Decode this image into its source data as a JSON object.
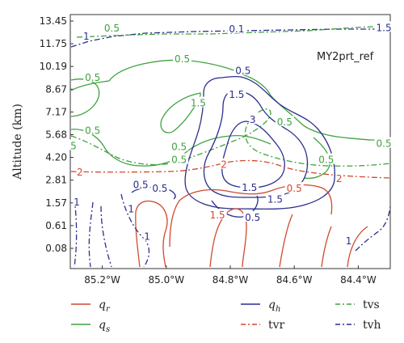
{
  "chart_data": {
    "type": "contour",
    "annotation": "MY2prt_ref",
    "ylabel": "Altitude (km)",
    "xlabel": "",
    "y_ticks": [
      "0.08",
      "0.61",
      "1.57",
      "2.81",
      "4.20",
      "5.68",
      "7.17",
      "8.67",
      "10.19",
      "11.75",
      "13.45"
    ],
    "x_ticks": [
      "85.2°W",
      "85.0°W",
      "84.8°W",
      "84.6°W",
      "84.4°W"
    ],
    "x_tick_values": [
      -85.2,
      -85.0,
      -84.8,
      -84.6,
      -84.4
    ],
    "xlim": [
      -85.3,
      -84.3
    ],
    "legend_placement": "bottom",
    "legend": [
      {
        "key": "qr",
        "base": "q",
        "sub": "r",
        "color": "#d0492d",
        "dash": "solid"
      },
      {
        "key": "qh",
        "base": "q",
        "sub": "h",
        "color": "#2c2f8c",
        "dash": "solid"
      },
      {
        "key": "tvs",
        "base": "tvs",
        "sub": "",
        "color": "#3fa23f",
        "dash": "dashdot"
      },
      {
        "key": "qs",
        "base": "q",
        "sub": "s",
        "color": "#3fa23f",
        "dash": "solid"
      },
      {
        "key": "tvr",
        "base": "tvr",
        "sub": "",
        "color": "#d0492d",
        "dash": "dashdot"
      },
      {
        "key": "tvh",
        "base": "tvh",
        "sub": "",
        "color": "#2c2f8c",
        "dash": "dashdot"
      }
    ],
    "contour_labels": [
      {
        "series": "tvs",
        "text": "0.5",
        "x": -85.17,
        "y": 12.9
      },
      {
        "series": "tvh",
        "text": "1",
        "x": -85.25,
        "y": 12.3
      },
      {
        "series": "tvh",
        "text": "0.1",
        "x": -84.78,
        "y": 12.85
      },
      {
        "series": "tvh",
        "text": "1.5",
        "x": -84.32,
        "y": 12.95
      },
      {
        "series": "qs",
        "text": "0.5",
        "x": -84.95,
        "y": 10.7
      },
      {
        "series": "qs",
        "text": "0.5",
        "x": -85.23,
        "y": 9.45
      },
      {
        "series": "qs",
        "text": "1.5",
        "x": -84.9,
        "y": 7.75
      },
      {
        "series": "qs",
        "text": "0.5",
        "x": -85.23,
        "y": 5.95
      },
      {
        "series": "qs",
        "text": "5",
        "x": -85.29,
        "y": 4.95
      },
      {
        "series": "qs",
        "text": "0.5",
        "x": -84.96,
        "y": 4.9
      },
      {
        "series": "qs",
        "text": "0.5",
        "x": -84.96,
        "y": 4.05
      },
      {
        "series": "qs",
        "text": "0.5",
        "x": -84.5,
        "y": 4.05
      },
      {
        "series": "qs",
        "text": "0.5",
        "x": -84.32,
        "y": 5.1
      },
      {
        "series": "qs",
        "text": "0.5",
        "x": -84.63,
        "y": 6.5
      },
      {
        "series": "qh",
        "text": "0.5",
        "x": -84.76,
        "y": 9.9
      },
      {
        "series": "qh",
        "text": "1.5",
        "x": -84.78,
        "y": 8.3
      },
      {
        "series": "qh",
        "text": "3",
        "x": -84.73,
        "y": 6.65
      },
      {
        "series": "qh",
        "text": "0.5",
        "x": -85.08,
        "y": 2.55
      },
      {
        "series": "qh",
        "text": "0.5",
        "x": -85.02,
        "y": 2.35
      },
      {
        "series": "qh",
        "text": "1.5",
        "x": -84.74,
        "y": 2.4
      },
      {
        "series": "qh",
        "text": "1.5",
        "x": -84.66,
        "y": 1.75
      },
      {
        "series": "qh",
        "text": "0.5",
        "x": -84.73,
        "y": 0.95
      },
      {
        "series": "tvr",
        "text": "2",
        "x": -85.27,
        "y": 3.3
      },
      {
        "series": "tvr",
        "text": "2",
        "x": -84.82,
        "y": 3.75
      },
      {
        "series": "tvr",
        "text": "2",
        "x": -84.46,
        "y": 2.9
      },
      {
        "series": "qr",
        "text": "0.5",
        "x": -84.6,
        "y": 2.35
      },
      {
        "series": "qr",
        "text": "1.5",
        "x": -84.84,
        "y": 1.05
      },
      {
        "series": "tvh",
        "text": "1",
        "x": -85.28,
        "y": 1.6
      },
      {
        "series": "tvh",
        "text": "1",
        "x": -85.11,
        "y": 1.3
      },
      {
        "series": "tvh",
        "text": "1",
        "x": -85.06,
        "y": 0.35
      },
      {
        "series": "tvh",
        "text": "1",
        "x": -84.43,
        "y": 0.25
      }
    ]
  }
}
